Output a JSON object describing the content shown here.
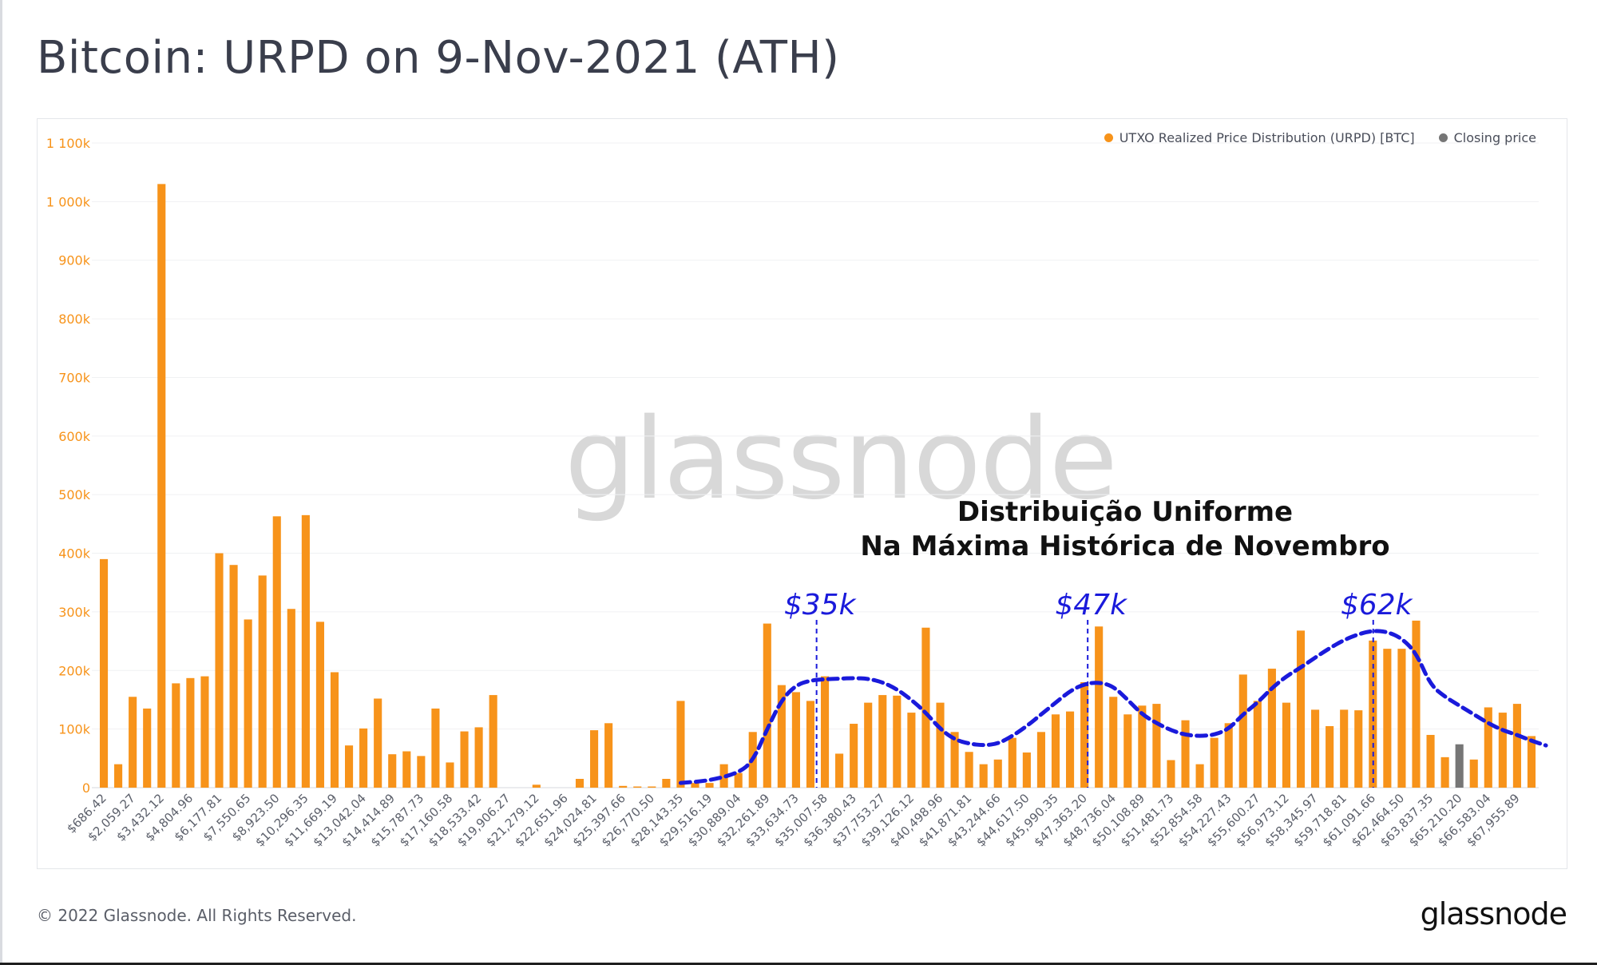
{
  "title": "Bitcoin: URPD on 9-Nov-2021 (ATH)",
  "legend": [
    {
      "label": "UTXO Realized Price Distribution (URPD) [BTC]",
      "color": "#f7931a"
    },
    {
      "label": "Closing price",
      "color": "#767676"
    }
  ],
  "watermark": "glassnode",
  "footer": {
    "copyright": "© 2022 Glassnode. All Rights Reserved.",
    "brand": "glassnode"
  },
  "annotation": {
    "line1": "Distribuição Uniforme",
    "line2": "Na Máxima Histórica de Novembro",
    "peaks": [
      "$35k",
      "$47k",
      "$62k"
    ],
    "color": "#1a1adb"
  },
  "chart_data": {
    "type": "bar",
    "ylim": [
      0,
      1100000
    ],
    "y_ticks": [
      {
        "value": 0,
        "label": "0"
      },
      {
        "value": 100000,
        "label": "100k"
      },
      {
        "value": 200000,
        "label": "200k"
      },
      {
        "value": 300000,
        "label": "300k"
      },
      {
        "value": 400000,
        "label": "400k"
      },
      {
        "value": 500000,
        "label": "500k"
      },
      {
        "value": 600000,
        "label": "600k"
      },
      {
        "value": 700000,
        "label": "700k"
      },
      {
        "value": 800000,
        "label": "800k"
      },
      {
        "value": 900000,
        "label": "900k"
      },
      {
        "value": 1000000,
        "label": "1 000k"
      },
      {
        "value": 1100000,
        "label": "1 100k"
      }
    ],
    "x_tick_labels": [
      "$686.42",
      "$2,059.27",
      "$3,432.12",
      "$4,804.96",
      "$6,177.81",
      "$7,550.65",
      "$8,923.50",
      "$10,296.35",
      "$11,669.19",
      "$13,042.04",
      "$14,414.89",
      "$15,787.73",
      "$17,160.58",
      "$18,533.42",
      "$19,906.27",
      "$21,279.12",
      "$22,651.96",
      "$24,024.81",
      "$25,397.66",
      "$26,770.50",
      "$28,143.35",
      "$29,516.19",
      "$30,889.04",
      "$32,261.89",
      "$33,634.73",
      "$35,007.58",
      "$36,380.43",
      "$37,753.27",
      "$39,126.12",
      "$40,498.96",
      "$41,871.81",
      "$43,244.66",
      "$44,617.50",
      "$45,990.35",
      "$47,363.20",
      "$48,736.04",
      "$50,108.89",
      "$51,481.73",
      "$52,854.58",
      "$54,227.43",
      "$55,600.27",
      "$56,973.12",
      "$58,345.97",
      "$59,718.81",
      "$61,091.66",
      "$62,464.50",
      "$63,837.35",
      "$65,210.20",
      "$66,583.04",
      "$67,955.89"
    ],
    "bucket_width_usd": 686.42,
    "values": [
      390000,
      40000,
      155000,
      135000,
      1030000,
      178000,
      187000,
      190000,
      400000,
      380000,
      287000,
      362000,
      463000,
      305000,
      465000,
      283000,
      197000,
      72000,
      101000,
      152000,
      57000,
      62000,
      54000,
      135000,
      43000,
      96000,
      103000,
      158000,
      0,
      0,
      5000,
      0,
      0,
      15000,
      98000,
      110000,
      3000,
      2000,
      2000,
      15000,
      148000,
      8000,
      8000,
      40000,
      25000,
      95000,
      280000,
      175000,
      163000,
      148000,
      190000,
      58000,
      109000,
      145000,
      158000,
      157000,
      128000,
      273000,
      145000,
      95000,
      61000,
      40000,
      48000,
      85000,
      60000,
      95000,
      125000,
      130000,
      180000,
      275000,
      155000,
      125000,
      140000,
      143000,
      47000,
      115000,
      40000,
      85000,
      110000,
      193000,
      148000,
      203000,
      145000,
      268000,
      133000,
      105000,
      133000,
      132000,
      251000,
      237000,
      237000,
      285000,
      90000,
      52000,
      0,
      48000,
      137000,
      128000,
      143000,
      88000
    ],
    "closing_price_bucket_index": 94,
    "closing_price_value": 74000
  }
}
